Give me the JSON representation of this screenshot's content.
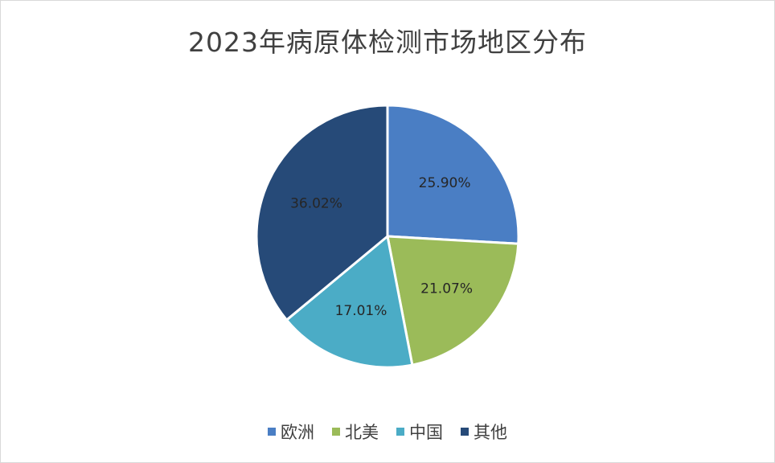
{
  "chart_data": {
    "type": "pie",
    "title": "2023年病原体检测市场地区分布",
    "categories": [
      "欧洲",
      "北美",
      "中国",
      "其他"
    ],
    "values": [
      25.9,
      21.07,
      17.01,
      36.02
    ],
    "labels": [
      "25.90%",
      "21.07%",
      "17.01%",
      "36.02%"
    ],
    "colors": [
      "#4a7ec4",
      "#9bbb59",
      "#4bacc6",
      "#264a78"
    ],
    "legend": "bottom",
    "start": "top",
    "direction": "clockwise"
  }
}
